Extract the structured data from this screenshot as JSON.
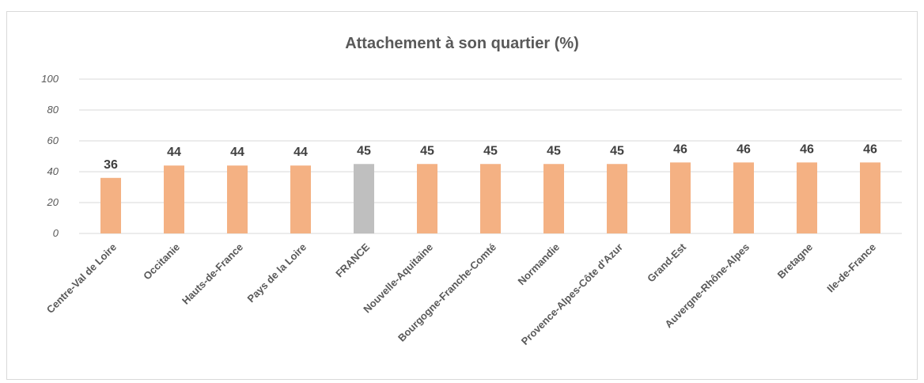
{
  "chart_data": {
    "type": "bar",
    "title": "Attachement à son quartier (%)",
    "xlabel": "",
    "ylabel": "",
    "ylim": [
      0,
      100
    ],
    "yticks": [
      "0",
      "20",
      "40",
      "60",
      "80",
      "100"
    ],
    "categories": [
      "Centre-Val de Loire",
      "Occitanie",
      "Hauts-de-France",
      "Pays de la Loire",
      "FRANCE",
      "Nouvelle-Aquitaine",
      "Bourgogne-Franche-Comté",
      "Normandie",
      "Provence-Alpes-Côte d'Azur",
      "Grand-Est",
      "Auvergne-Rhône-Alpes",
      "Bretagne",
      "Ile-de-France"
    ],
    "values": [
      36,
      44,
      44,
      44,
      45,
      45,
      45,
      45,
      45,
      46,
      46,
      46,
      46
    ],
    "data_labels": [
      "36",
      "44",
      "44",
      "44",
      "45",
      "45",
      "45",
      "45",
      "45",
      "46",
      "46",
      "46",
      "46"
    ],
    "grid": true,
    "legend": "none",
    "colors": {
      "default": "#F4B183",
      "highlight": "#BFBFBF",
      "highlight_category": "FRANCE",
      "grid": "#D9D9D9"
    }
  }
}
